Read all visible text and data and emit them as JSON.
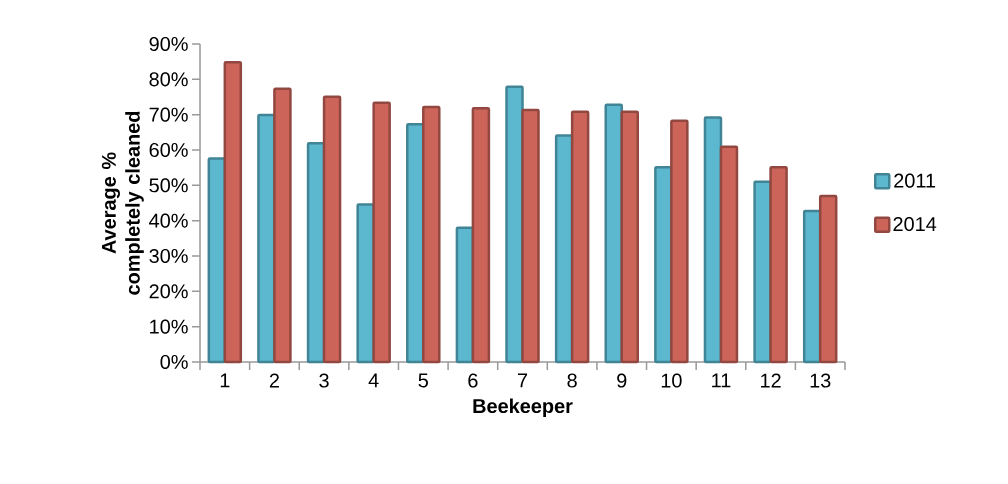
{
  "chart_data": {
    "type": "bar",
    "xlabel": "Beekeeper",
    "ylabel": "Average % completely cleaned",
    "categories": [
      "1",
      "2",
      "3",
      "4",
      "5",
      "6",
      "7",
      "8",
      "9",
      "10",
      "11",
      "12",
      "13"
    ],
    "series": [
      {
        "name": "2011",
        "color": "#5bb8cf",
        "values": [
          57.6,
          69.9,
          61.9,
          44.6,
          67.3,
          38.0,
          77.9,
          64.1,
          72.8,
          55.1,
          69.2,
          51.0,
          42.7
        ]
      },
      {
        "name": "2014",
        "color": "#cc6459",
        "values": [
          84.8,
          77.3,
          75.1,
          73.4,
          72.2,
          71.8,
          71.3,
          70.8,
          70.8,
          68.3,
          60.9,
          55.1,
          47.0
        ]
      }
    ],
    "ylim": [
      0,
      90
    ],
    "yticks": [
      {
        "value": 0,
        "label": "0%"
      },
      {
        "value": 10,
        "label": "10%"
      },
      {
        "value": 20,
        "label": "20%"
      },
      {
        "value": 30,
        "label": "30%"
      },
      {
        "value": 40,
        "label": "40%"
      },
      {
        "value": 50,
        "label": "50%"
      },
      {
        "value": 60,
        "label": "60%"
      },
      {
        "value": 70,
        "label": "70%"
      },
      {
        "value": 80,
        "label": "80%"
      },
      {
        "value": 90,
        "label": "90%"
      }
    ],
    "legend": "right",
    "grid": false
  }
}
